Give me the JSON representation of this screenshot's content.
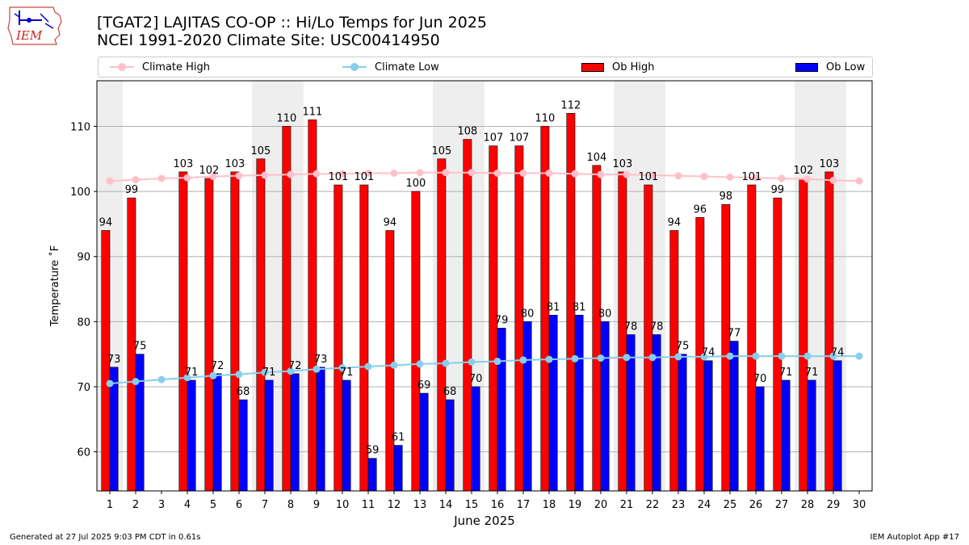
{
  "header": {
    "logo_text": "IEM",
    "title_line1": "[TGAT2] LAJITAS CO-OP :: Hi/Lo Temps for Jun 2025",
    "title_line2": "NCEI 1991-2020 Climate Site: USC00414950"
  },
  "legend": {
    "climate_high": "Climate High",
    "climate_low": "Climate Low",
    "ob_high": "Ob High",
    "ob_low": "Ob Low"
  },
  "footer": {
    "generated": "Generated at 27 Jul 2025 9:03 PM CDT in 0.61s",
    "app": "IEM Autoplot App #17"
  },
  "colors": {
    "ob_high": "#ff0000",
    "ob_low": "#0000ff",
    "climate_high": "#ffc0cb",
    "climate_low": "#87ceeb",
    "weekend_shade": "#eeeeee"
  },
  "chart_data": {
    "type": "bar",
    "xlabel": "June 2025",
    "ylabel": "Temperature ˚F",
    "ylim": [
      54,
      117
    ],
    "yticks": [
      60,
      70,
      80,
      90,
      100,
      110
    ],
    "grid": "horizontal",
    "legend_placement": "top",
    "categories": [
      "1",
      "2",
      "3",
      "4",
      "5",
      "6",
      "7",
      "8",
      "9",
      "10",
      "11",
      "12",
      "13",
      "14",
      "15",
      "16",
      "17",
      "18",
      "19",
      "20",
      "21",
      "22",
      "23",
      "24",
      "25",
      "26",
      "27",
      "28",
      "29",
      "30"
    ],
    "shaded_days": [
      1,
      7,
      8,
      14,
      15,
      21,
      22,
      28,
      29
    ],
    "series": [
      {
        "name": "Ob High",
        "kind": "bar",
        "values": [
          94,
          99,
          null,
          103,
          102,
          103,
          105,
          110,
          111,
          101,
          101,
          94,
          100,
          105,
          108,
          107,
          107,
          110,
          112,
          104,
          103,
          101,
          94,
          96,
          98,
          101,
          99,
          102,
          103,
          null
        ]
      },
      {
        "name": "Ob Low",
        "kind": "bar",
        "values": [
          73,
          75,
          null,
          71,
          72,
          68,
          71,
          72,
          73,
          71,
          59,
          61,
          69,
          68,
          70,
          79,
          80,
          81,
          81,
          80,
          78,
          78,
          75,
          74,
          77,
          70,
          71,
          71,
          74,
          null
        ]
      },
      {
        "name": "Climate High",
        "kind": "line",
        "values": [
          101.6,
          101.8,
          102.0,
          102.1,
          102.3,
          102.4,
          102.5,
          102.6,
          102.7,
          102.7,
          102.8,
          102.8,
          102.9,
          102.9,
          102.9,
          102.8,
          102.8,
          102.8,
          102.7,
          102.6,
          102.6,
          102.5,
          102.4,
          102.3,
          102.2,
          102.1,
          102.0,
          101.9,
          101.7,
          101.6
        ]
      },
      {
        "name": "Climate Low",
        "kind": "line",
        "values": [
          70.5,
          70.8,
          71.1,
          71.4,
          71.7,
          71.9,
          72.2,
          72.4,
          72.7,
          72.9,
          73.1,
          73.3,
          73.5,
          73.6,
          73.8,
          73.9,
          74.1,
          74.2,
          74.3,
          74.4,
          74.5,
          74.5,
          74.6,
          74.6,
          74.7,
          74.7,
          74.7,
          74.7,
          74.7,
          74.7
        ]
      }
    ]
  }
}
